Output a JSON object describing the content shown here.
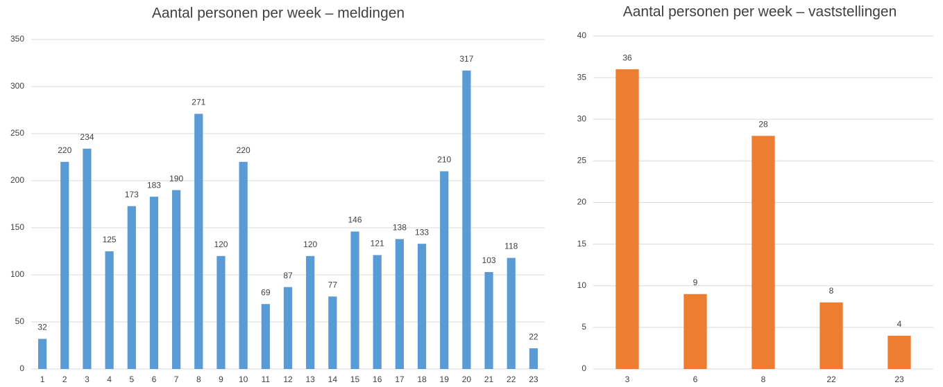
{
  "chart_data": [
    {
      "type": "bar",
      "title": "Aantal personen per week – meldingen",
      "categories": [
        "1",
        "2",
        "3",
        "4",
        "5",
        "6",
        "7",
        "8",
        "9",
        "10",
        "11",
        "12",
        "13",
        "14",
        "15",
        "16",
        "17",
        "18",
        "19",
        "20",
        "21",
        "22",
        "23"
      ],
      "values": [
        32,
        220,
        234,
        125,
        173,
        183,
        190,
        271,
        120,
        220,
        69,
        87,
        120,
        77,
        146,
        121,
        138,
        133,
        210,
        317,
        103,
        118,
        22
      ],
      "color": "#5b9bd5",
      "ylim": [
        0,
        350
      ],
      "yticks": [
        0,
        50,
        100,
        150,
        200,
        250,
        300,
        350
      ],
      "grid": true
    },
    {
      "type": "bar",
      "title": "Aantal personen per week – vaststellingen",
      "categories": [
        "3",
        "6",
        "8",
        "22",
        "23"
      ],
      "values": [
        36,
        9,
        28,
        8,
        4
      ],
      "color": "#ed7d31",
      "ylim": [
        0,
        40
      ],
      "yticks": [
        0,
        5,
        10,
        15,
        20,
        25,
        30,
        35,
        40
      ],
      "grid": true
    }
  ]
}
